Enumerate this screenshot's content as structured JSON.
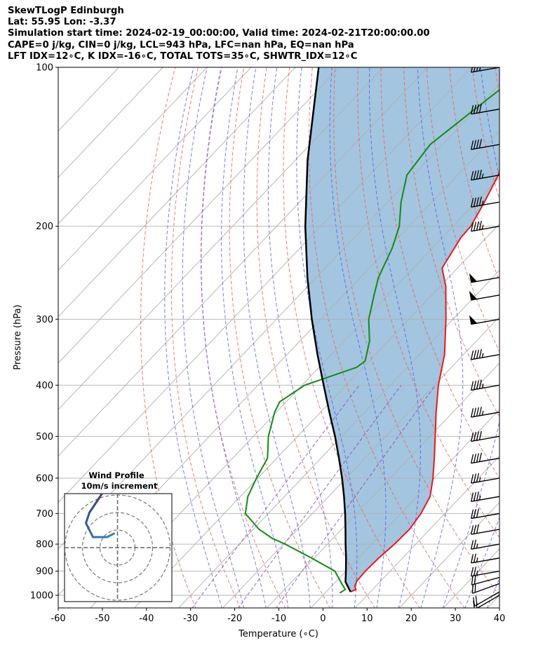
{
  "header": {
    "line1": "SkewTLogP Edinburgh",
    "line2": "Lat: 55.95   Lon: -3.37",
    "line3": "Simulation start time: 2024-02-19_00:00:00, Valid time: 2024-02-21T20:00:00.00",
    "line4": "CAPE=0 j/kg, CIN=0 j/kg, LCL=943 hPa, LFC=nan hPa, EQ=nan hPa",
    "line5": "LFT IDX=12∘C, K IDX=-16∘C, TOTAL TOTS=35∘C, SHWTR_IDX=12∘C"
  },
  "chart_data": {
    "type": "skew-t log-p",
    "xlabel": "Temperature (∘C)",
    "ylabel": "Pressure (hPa)",
    "xlim": [
      -60,
      40
    ],
    "ylim": [
      1050,
      100
    ],
    "y_scale": "log",
    "x_ticks": [
      -60,
      -50,
      -40,
      -30,
      -20,
      -10,
      0,
      10,
      20,
      30,
      40
    ],
    "y_ticks": [
      1000,
      900,
      800,
      700,
      600,
      500,
      400,
      300,
      200,
      100
    ],
    "grid": true,
    "colors": {
      "temperature": "#e8191c",
      "dewpoint": "#138a13",
      "parcel": "#000000",
      "fill": "#a3c5df",
      "dry_adiabats": "#f06262",
      "moist_adiabats": "#5a5ae8",
      "mixing_ratio": "#8a3cc0",
      "isotherms": "#b0b0b0",
      "barbs": "#000000",
      "hodograph": "#2c1c62"
    },
    "temperature_profile": {
      "pressure": [
        985,
        975,
        960,
        940,
        900,
        850,
        800,
        750,
        700,
        650,
        600,
        550,
        500,
        450,
        400,
        350,
        300,
        260,
        240,
        210,
        200,
        180,
        160,
        140,
        120,
        100
      ],
      "temperature": [
        5.5,
        6.2,
        5.2,
        4.6,
        4.4,
        4.6,
        5.2,
        5.4,
        4.6,
        3.0,
        -0.3,
        -4.3,
        -8.8,
        -13.8,
        -19.1,
        -24.3,
        -31.6,
        -38.7,
        -43.5,
        -45.8,
        -46.0,
        -48.1,
        -50.8,
        -55.0,
        -57.1,
        -62.5
      ]
    },
    "dewpoint_profile": {
      "pressure": [
        990,
        975,
        950,
        900,
        850,
        800,
        780,
        750,
        700,
        650,
        600,
        550,
        500,
        450,
        430,
        400,
        370,
        360,
        330,
        300,
        270,
        250,
        220,
        200,
        180,
        160,
        140,
        120,
        100
      ],
      "dewpoint": [
        3.3,
        3.8,
        1.7,
        -2.5,
        -10.6,
        -19.6,
        -23.8,
        -28.7,
        -35.2,
        -38.3,
        -40.3,
        -42.1,
        -46.6,
        -50.4,
        -51.5,
        -49.4,
        -41.5,
        -40.9,
        -44.2,
        -49.1,
        -53.1,
        -55.9,
        -59.1,
        -62.2,
        -67.0,
        -71.5,
        -72.8,
        -70.3,
        -67.2
      ]
    },
    "parcel_profile": {
      "pressure": [
        985,
        943,
        900,
        850,
        800,
        750,
        700,
        650,
        600,
        550,
        500,
        450,
        400,
        350,
        300,
        250,
        200,
        150,
        100
      ],
      "temperature": [
        5.5,
        2.2,
        0.0,
        -2.8,
        -5.9,
        -9.1,
        -12.6,
        -16.5,
        -20.9,
        -25.9,
        -31.5,
        -38.0,
        -45.1,
        -53.1,
        -62.0,
        -72.0,
        -83.5,
        -97.2,
        -114.7
      ]
    },
    "wind_barbs": {
      "pressure": [
        1000,
        985,
        950,
        925,
        900,
        850,
        800,
        750,
        700,
        650,
        600,
        550,
        500,
        450,
        400,
        350,
        300,
        270,
        250,
        200,
        180,
        160,
        140,
        120,
        100
      ],
      "speed_kt": [
        15,
        20,
        20,
        20,
        25,
        25,
        25,
        30,
        30,
        35,
        35,
        40,
        40,
        45,
        45,
        45,
        50,
        50,
        50,
        45,
        45,
        45,
        40,
        40,
        40
      ],
      "direction_deg": [
        240,
        240,
        250,
        255,
        260,
        260,
        260,
        260,
        260,
        260,
        260,
        260,
        260,
        260,
        260,
        260,
        260,
        260,
        260,
        260,
        260,
        260,
        260,
        260,
        260
      ]
    },
    "hodograph": {
      "title": "Wind Profile",
      "subtitle": "10m/s increment",
      "rings_ms": [
        10,
        20,
        30
      ],
      "u_ms": [
        4,
        3,
        2,
        0,
        -2,
        -4,
        -6,
        -8,
        -9,
        -8,
        -7,
        -5,
        -3,
        -1
      ],
      "v_ms": [
        18,
        18,
        17,
        17,
        17,
        16,
        13,
        10,
        7,
        5,
        3,
        3,
        3,
        4
      ]
    }
  }
}
